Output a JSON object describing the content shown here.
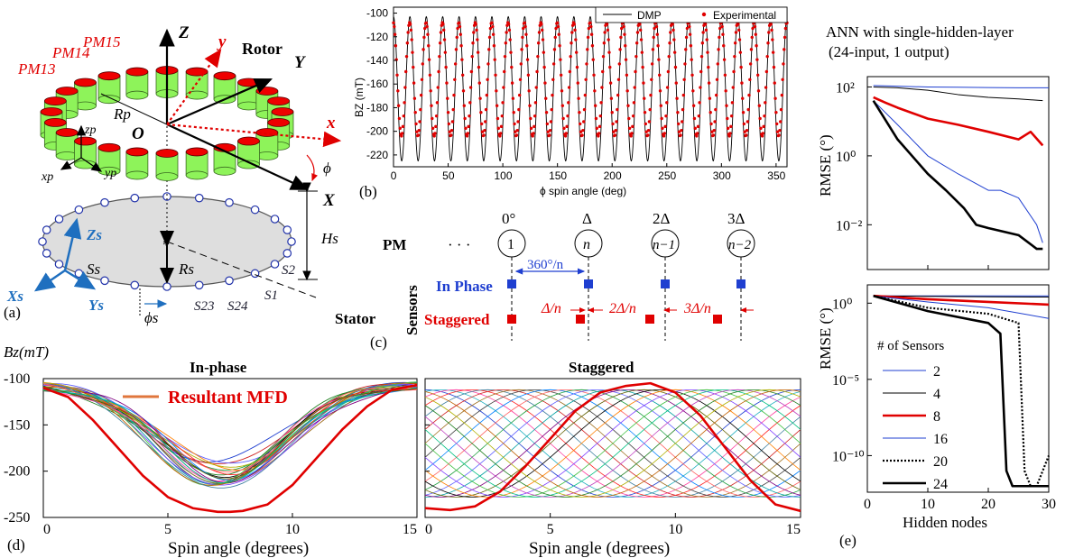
{
  "panel_a": {
    "tag": "(a)",
    "rotor": "Rotor",
    "stator": "Stator",
    "pm13": "PM13",
    "pm14": "PM14",
    "pm15": "PM15",
    "Z": "Z",
    "Y": "Y",
    "X": "X",
    "x": "x",
    "y": "y",
    "O": "O",
    "zp": "zp",
    "xp": "xp",
    "yp": "yp",
    "Rp": "Rp",
    "Rs": "Rs",
    "Hs": "Hs",
    "phi": "ϕ",
    "phis": "ϕs",
    "Zs": "Zs",
    "Xs": "Xs",
    "Ys": "Ys",
    "Ss": "Ss",
    "S1": "S1",
    "S2": "S2",
    "S23": "S23",
    "S24": "S24",
    "colors": {
      "magnet_body": "#8ef35a",
      "magnet_top": "#ee0000",
      "axis_red": "#e00000",
      "blue": "#1f6fbf"
    }
  },
  "panel_b": {
    "tag": "(b)",
    "legend_dmp": "DMP",
    "legend_exp": "Experimental",
    "ylabel": "BZ (mT)",
    "xlabel": "ϕ spin angle (deg)",
    "yticks": [
      "-100",
      "-120",
      "-140",
      "-160",
      "-180",
      "-200",
      "-220"
    ],
    "xticks": [
      "0",
      "50",
      "100",
      "150",
      "200",
      "250",
      "300",
      "350"
    ]
  },
  "panel_c": {
    "tag": "(c)",
    "pm_label": "PM",
    "dots": "· · ·",
    "angles": [
      "0°",
      "Δ",
      "2Δ",
      "3Δ"
    ],
    "pm_nodes": [
      "1",
      "n",
      "n−1",
      "n−2"
    ],
    "sensors": "Sensors",
    "in_phase": "In Phase",
    "staggered": "Staggered",
    "spacing": "360°/n",
    "offsets": [
      "Δ/n",
      "2Δ/n",
      "3Δ/n"
    ]
  },
  "panel_d": {
    "tag": "(d)",
    "ylabel": "Bz(mT)",
    "left_title": "In-phase",
    "right_title": "Staggered",
    "legend": "Resultant MFD",
    "xlabel_left": "Spin angle (degrees)",
    "xlabel_right": "Spin angle (degrees)",
    "yticks": [
      "-100",
      "-150",
      "-200",
      "-250"
    ],
    "xticks": [
      "0",
      "5",
      "10",
      "15"
    ]
  },
  "panel_e": {
    "tag": "(e)",
    "title_line1": "ANN with single-hidden-layer",
    "title_line2": "(24-input, 1 output)",
    "ylabel_top": "RMSE (°)",
    "ylabel_bottom": "RMSE (°)",
    "top_yticks": [
      "10²",
      "10⁰",
      "10⁻²"
    ],
    "bottom_yticks": [
      "10⁰",
      "10⁻⁵",
      "10⁻¹⁰"
    ],
    "xticks": [
      "0",
      "10",
      "20",
      "30"
    ],
    "xlabel": "Hidden nodes",
    "legend_title": "# of Sensors",
    "legend_items": [
      "2",
      "4",
      "8",
      "16",
      "20",
      "24"
    ]
  },
  "chart_data": [
    {
      "type": "line",
      "panel": "b",
      "xlabel": "ϕ spin angle (deg)",
      "ylabel": "BZ (mT)",
      "xlim": [
        0,
        360
      ],
      "ylim": [
        -230,
        -95
      ],
      "series": [
        {
          "name": "DMP",
          "color": "#000000",
          "description_period_deg": 15,
          "min": -225,
          "max": -103
        },
        {
          "name": "Experimental",
          "color": "#e00000",
          "marker": "dot",
          "min": -205,
          "max": -108
        }
      ]
    },
    {
      "type": "line",
      "panel": "d-left",
      "title": "In-phase",
      "xlabel": "Spin angle (degrees)",
      "ylabel": "Bz(mT)",
      "xlim": [
        0,
        15
      ],
      "ylim": [
        -250,
        -100
      ],
      "series": [
        {
          "name": "Resultant MFD",
          "color": "#e00000",
          "x": [
            0,
            1,
            2,
            3,
            4,
            5,
            6,
            7,
            7.5,
            8,
            9,
            10,
            11,
            12,
            13,
            14,
            15
          ],
          "y": [
            -110,
            -120,
            -145,
            -175,
            -205,
            -228,
            -240,
            -244,
            -244,
            -243,
            -236,
            -215,
            -185,
            -155,
            -130,
            -112,
            -107
          ]
        }
      ]
    },
    {
      "type": "line",
      "panel": "d-right",
      "title": "Staggered",
      "xlabel": "Spin angle (degrees)",
      "xlim": [
        0,
        15
      ],
      "ylim": [
        -250,
        -100
      ],
      "series": [
        {
          "name": "Resultant MFD",
          "color": "#e00000",
          "x": [
            0,
            1,
            2,
            3,
            4,
            5,
            6,
            7,
            8,
            9,
            10,
            11,
            12,
            13,
            14,
            15
          ],
          "y": [
            -240,
            -242,
            -238,
            -222,
            -195,
            -165,
            -135,
            -115,
            -108,
            -105,
            -115,
            -140,
            -175,
            -210,
            -236,
            -243
          ]
        }
      ]
    },
    {
      "type": "line",
      "panel": "e-top",
      "xlabel": "Hidden nodes",
      "ylabel": "RMSE (°)",
      "yscale": "log",
      "xlim": [
        0,
        30
      ],
      "series": [
        {
          "name": "2",
          "color": "#1f3fd0",
          "x": [
            1,
            5,
            10,
            15,
            20,
            25,
            30
          ],
          "y": [
            110,
            105,
            100,
            98,
            96,
            95,
            95
          ]
        },
        {
          "name": "4",
          "color": "#000000",
          "x": [
            1,
            5,
            10,
            15,
            20,
            25,
            29
          ],
          "y": [
            100,
            95,
            80,
            60,
            50,
            45,
            40
          ]
        },
        {
          "name": "8",
          "color": "#e00000",
          "x": [
            1,
            3,
            5,
            10,
            15,
            20,
            25,
            27,
            29
          ],
          "y": [
            50,
            35,
            25,
            12,
            8,
            5,
            3,
            5,
            2
          ]
        },
        {
          "name": "16",
          "color": "#1f3fd0",
          "x": [
            1,
            5,
            10,
            15,
            20,
            22,
            25,
            28,
            29
          ],
          "y": [
            40,
            8,
            1,
            0.3,
            0.1,
            0.1,
            0.06,
            0.01,
            0.003
          ]
        },
        {
          "name": "24",
          "color": "#000000",
          "x": [
            1,
            5,
            10,
            13,
            16,
            18,
            20,
            25,
            28,
            29
          ],
          "y": [
            40,
            3,
            0.3,
            0.1,
            0.03,
            0.01,
            0.008,
            0.005,
            0.002,
            0.002
          ]
        }
      ]
    },
    {
      "type": "line",
      "panel": "e-bottom",
      "xlabel": "Hidden nodes",
      "ylabel": "RMSE (°)",
      "yscale": "log",
      "xlim": [
        0,
        30
      ],
      "series": [
        {
          "name": "2",
          "color": "#1f3fd0",
          "x": [
            1,
            10,
            20,
            30
          ],
          "y": [
            3,
            3,
            3,
            3
          ]
        },
        {
          "name": "4",
          "color": "#000000",
          "x": [
            1,
            10,
            20,
            30
          ],
          "y": [
            3,
            2.8,
            2.6,
            2.5
          ]
        },
        {
          "name": "8",
          "color": "#e00000",
          "x": [
            1,
            10,
            20,
            30
          ],
          "y": [
            3,
            1.8,
            1.2,
            0.8
          ]
        },
        {
          "name": "16",
          "color": "#1f3fd0",
          "x": [
            1,
            10,
            20,
            30
          ],
          "y": [
            3,
            1.2,
            0.5,
            0.1
          ]
        },
        {
          "name": "20",
          "color": "#000000",
          "dash": true,
          "x": [
            1,
            10,
            20,
            25,
            26,
            27,
            28,
            30
          ],
          "y": [
            3,
            0.5,
            0.2,
            0.05,
            1e-11,
            1e-12,
            1e-12,
            1e-10
          ]
        },
        {
          "name": "24",
          "color": "#000000",
          "x": [
            1,
            10,
            20,
            22,
            23,
            24,
            28,
            30
          ],
          "y": [
            3,
            0.3,
            0.05,
            0.01,
            1e-11,
            1e-12,
            1e-12,
            1e-12
          ]
        }
      ]
    }
  ]
}
